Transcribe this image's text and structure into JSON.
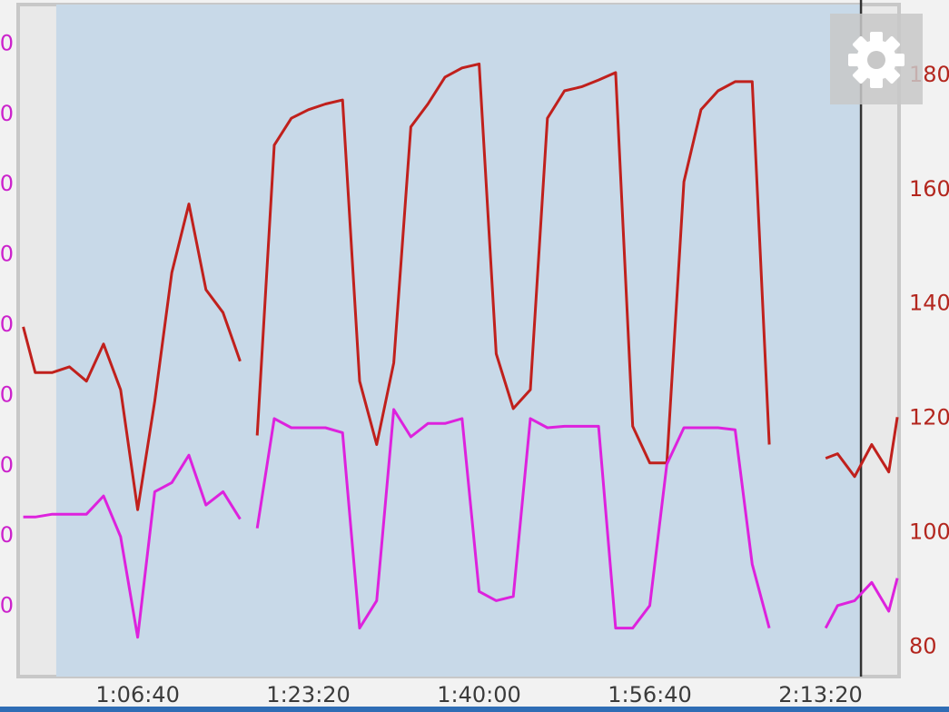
{
  "chart_data": {
    "type": "line",
    "x": [
      3330,
      3400,
      3500,
      3600,
      3700,
      3800,
      3900,
      4000,
      4100,
      4200,
      4300,
      4400,
      4500,
      4600,
      4650,
      4700,
      4800,
      4900,
      5000,
      5100,
      5200,
      5300,
      5400,
      5500,
      5600,
      5700,
      5800,
      5900,
      6000,
      6100,
      6200,
      6300,
      6400,
      6500,
      6600,
      6700,
      6800,
      6900,
      7000,
      7100,
      7200,
      7300,
      7400,
      7500,
      7600,
      7700,
      7800,
      8030,
      8100,
      8200,
      8300,
      8400,
      8450
    ],
    "xlim": [
      3300,
      8460
    ],
    "xticks": [
      {
        "value": 4000,
        "label": "1:06:40"
      },
      {
        "value": 5000,
        "label": "1:23:20"
      },
      {
        "value": 6000,
        "label": "1:40:00"
      },
      {
        "value": 7000,
        "label": "1:56:40"
      },
      {
        "value": 8000,
        "label": "2:13:20"
      }
    ],
    "ylim": [
      0,
      95.6
    ],
    "yticks": [
      {
        "value": 10,
        "label": "0"
      },
      {
        "value": 20,
        "label": "0"
      },
      {
        "value": 30,
        "label": "0"
      },
      {
        "value": 40,
        "label": "0"
      },
      {
        "value": 50,
        "label": "0"
      },
      {
        "value": 60,
        "label": "0"
      },
      {
        "value": 70,
        "label": "0"
      },
      {
        "value": 80,
        "label": "0"
      },
      {
        "value": 90,
        "label": "0"
      }
    ],
    "y2lim": [
      74.8,
      192.4
    ],
    "y2ticks": [
      80,
      100,
      120,
      140,
      160,
      180
    ],
    "highlight_range": [
      3523,
      8237
    ],
    "series": [
      {
        "color": "#c0201c",
        "axis": "y2",
        "values": [
          136,
          128,
          128,
          129,
          126.5,
          133,
          125,
          104,
          123,
          145.5,
          157.5,
          142.5,
          138.5,
          130,
          null,
          117,
          167.8,
          172.5,
          174,
          175,
          175.7,
          126.5,
          115.4,
          129.7,
          171,
          175,
          179.7,
          181.3,
          182,
          131.3,
          121.7,
          125,
          172.5,
          177.3,
          178,
          179.2,
          180.5,
          118.6,
          112.2,
          112.2,
          161.4,
          174,
          177.3,
          178.9,
          178.9,
          115.4,
          null,
          113,
          113.8,
          109.8,
          115.4,
          110.6,
          120.2
        ]
      },
      {
        "color": "#dd22dd",
        "values": [
          22.7,
          22.7,
          23.1,
          23.1,
          23.1,
          25.7,
          19.9,
          5.6,
          26.3,
          27.6,
          31.5,
          24.4,
          26.3,
          22.4,
          null,
          21.1,
          36.7,
          35.4,
          35.4,
          35.4,
          34.7,
          6.9,
          10.8,
          38.0,
          34.1,
          36.0,
          36.0,
          36.7,
          12.1,
          10.8,
          11.4,
          36.7,
          35.4,
          35.6,
          35.6,
          35.6,
          6.9,
          6.9,
          10.1,
          30.2,
          35.4,
          35.4,
          35.4,
          35.1,
          16.0,
          6.9,
          null,
          6.9,
          10.1,
          10.8,
          13.4,
          9.3,
          14.0
        ]
      }
    ]
  }
}
